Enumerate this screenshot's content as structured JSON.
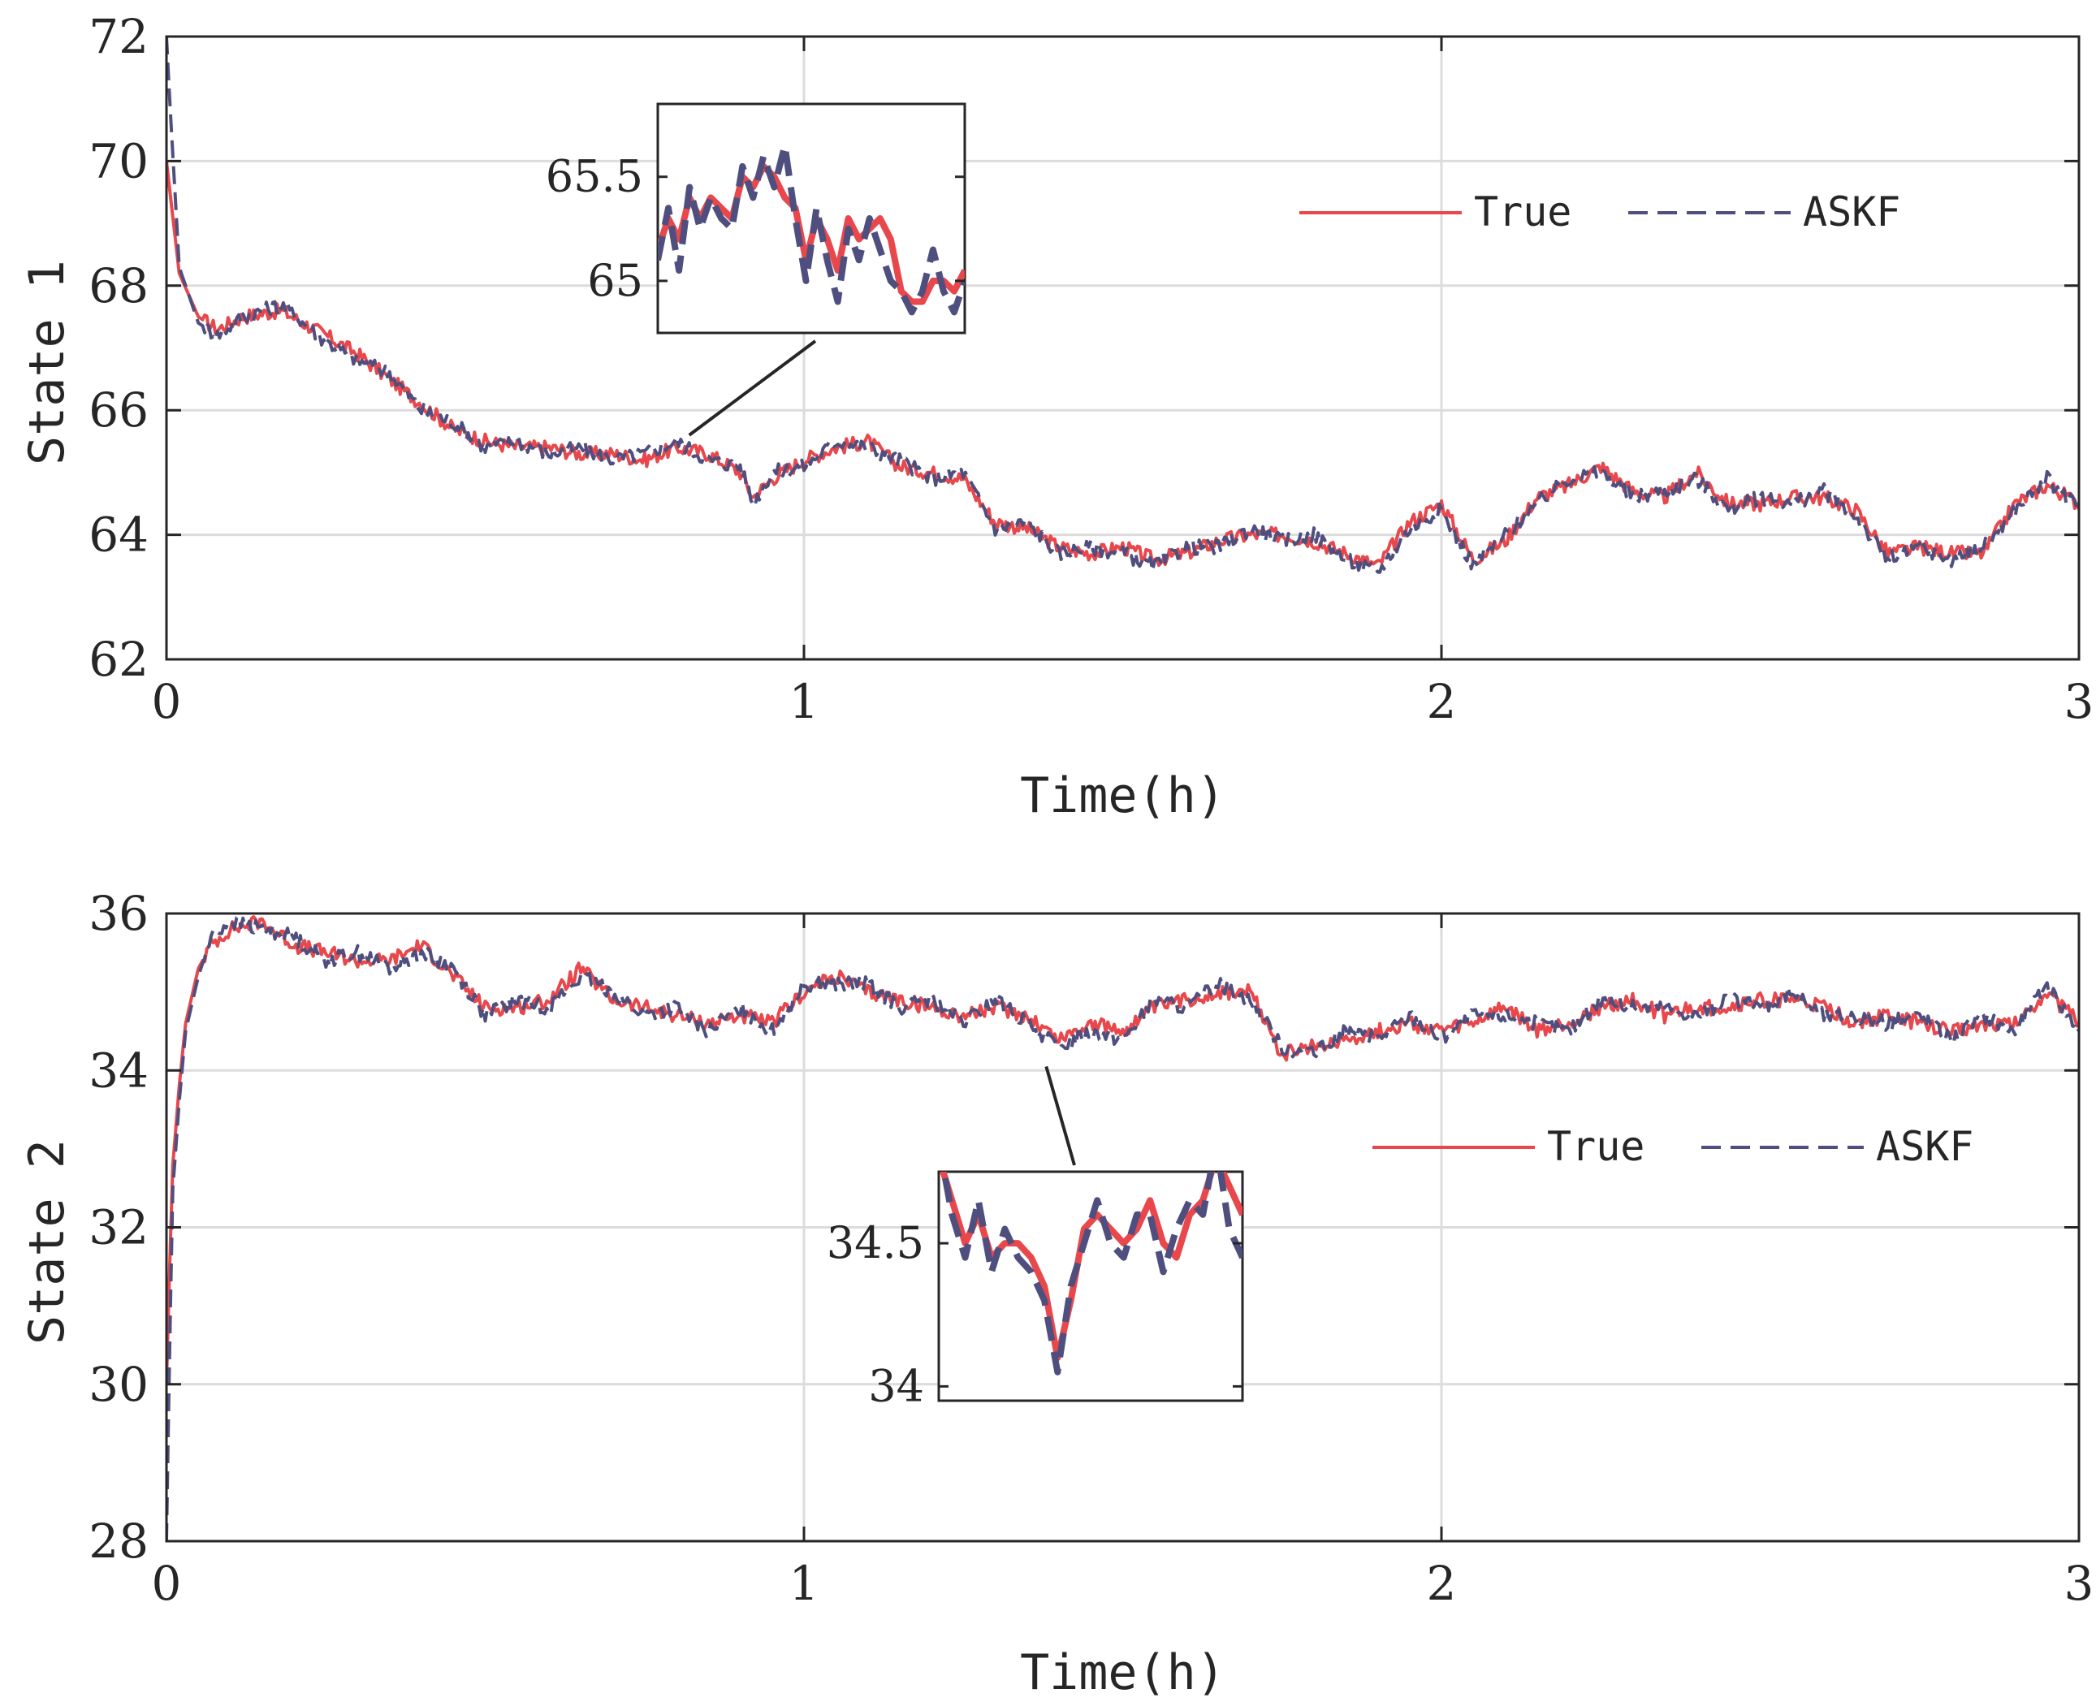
{
  "colors": {
    "true": "#e8474c",
    "askf": "#4f4f7f",
    "grid": "#dcdcdc",
    "axis": "#262626"
  },
  "chart_data": [
    {
      "type": "line",
      "xlabel": "Time(h)",
      "ylabel": "State 1",
      "xlim": [
        0,
        3
      ],
      "ylim": [
        62,
        72
      ],
      "xticks": [
        0,
        1,
        2,
        3
      ],
      "xtick_labels": [
        "0",
        "1",
        "2",
        "3"
      ],
      "yticks": [
        62,
        64,
        66,
        68,
        70,
        72
      ],
      "ytick_labels": [
        "62",
        "64",
        "66",
        "68",
        "70",
        "72"
      ],
      "grid": true,
      "legend": {
        "placement": "top-right",
        "entries": [
          "True",
          "ASKF"
        ]
      },
      "series": [
        {
          "name": "True",
          "style": "solid",
          "x": [
            0,
            0.02,
            0.05,
            0.08,
            0.12,
            0.18,
            0.25,
            0.3,
            0.35,
            0.4,
            0.45,
            0.5,
            0.55,
            0.6,
            0.65,
            0.7,
            0.75,
            0.8,
            0.85,
            0.9,
            0.92,
            0.95,
            1.0,
            1.05,
            1.1,
            1.15,
            1.2,
            1.25,
            1.3,
            1.35,
            1.4,
            1.45,
            1.5,
            1.55,
            1.6,
            1.65,
            1.7,
            1.75,
            1.8,
            1.85,
            1.9,
            1.95,
            2.0,
            2.05,
            2.1,
            2.15,
            2.2,
            2.25,
            2.3,
            2.35,
            2.4,
            2.45,
            2.5,
            2.55,
            2.6,
            2.65,
            2.7,
            2.75,
            2.8,
            2.85,
            2.9,
            2.95,
            3.0
          ],
          "y": [
            70,
            68.2,
            67.5,
            67.3,
            67.5,
            67.6,
            67.2,
            66.9,
            66.5,
            66.1,
            65.7,
            65.5,
            65.4,
            65.4,
            65.3,
            65.3,
            65.2,
            65.4,
            65.3,
            65.0,
            64.6,
            64.9,
            65.2,
            65.4,
            65.5,
            65.1,
            65.0,
            64.9,
            64.2,
            64.1,
            63.8,
            63.7,
            63.8,
            63.6,
            63.7,
            63.9,
            64.0,
            64.0,
            63.9,
            63.7,
            63.5,
            64.2,
            64.5,
            63.6,
            63.9,
            64.6,
            64.8,
            65.1,
            64.7,
            64.6,
            65.0,
            64.5,
            64.5,
            64.6,
            64.6,
            64.4,
            63.7,
            63.8,
            63.7,
            63.7,
            64.5,
            64.8,
            64.5
          ]
        },
        {
          "name": "ASKF",
          "style": "dashed",
          "x": [
            0,
            0.005,
            0.02,
            0.05,
            0.08,
            0.12,
            0.18,
            0.25,
            0.3,
            0.35,
            0.4,
            0.45,
            0.5,
            0.55,
            0.6,
            0.65,
            0.7,
            0.75,
            0.8,
            0.85,
            0.9,
            0.92,
            0.95,
            1.0,
            1.05,
            1.1,
            1.15,
            1.2,
            1.25,
            1.3,
            1.35,
            1.4,
            1.45,
            1.5,
            1.55,
            1.6,
            1.65,
            1.7,
            1.75,
            1.8,
            1.85,
            1.9,
            1.95,
            2.0,
            2.05,
            2.1,
            2.15,
            2.2,
            2.25,
            2.3,
            2.35,
            2.4,
            2.45,
            2.5,
            2.55,
            2.6,
            2.65,
            2.7,
            2.75,
            2.8,
            2.85,
            2.9,
            2.95,
            3.0
          ],
          "y": [
            72,
            71,
            68.3,
            67.4,
            67.2,
            67.5,
            67.7,
            67.1,
            66.8,
            66.6,
            66.0,
            65.8,
            65.4,
            65.5,
            65.3,
            65.4,
            65.2,
            65.3,
            65.5,
            65.2,
            65.1,
            64.5,
            65.0,
            65.1,
            65.5,
            65.4,
            65.2,
            64.9,
            65.0,
            64.1,
            64.2,
            63.7,
            63.8,
            63.7,
            63.5,
            63.8,
            63.8,
            64.1,
            63.9,
            64.0,
            63.6,
            63.4,
            64.1,
            64.4,
            63.5,
            64.0,
            64.5,
            64.9,
            65.0,
            64.6,
            64.7,
            64.9,
            64.4,
            64.6,
            64.5,
            64.7,
            64.3,
            63.6,
            63.8,
            63.6,
            63.8,
            64.4,
            64.9,
            64.4
          ]
        }
      ],
      "inset": {
        "source_x": 0.82,
        "source_y": 65.6,
        "xlim": [
          0.77,
          0.87
        ],
        "ylim": [
          64.75,
          65.85
        ],
        "yticks": [
          65,
          65.5
        ],
        "ytick_labels": [
          "65",
          "65.5"
        ],
        "true_y": [
          65.15,
          65.3,
          65.2,
          65.4,
          65.3,
          65.4,
          65.35,
          65.3,
          65.5,
          65.45,
          65.55,
          65.5,
          65.4,
          65.35,
          65.1,
          65.3,
          65.2,
          65.05,
          65.3,
          65.2,
          65.25,
          65.3,
          65.2,
          64.95,
          64.9,
          64.9,
          65.0,
          65.0,
          64.95,
          65.05
        ],
        "askf_y": [
          65.1,
          65.35,
          65.05,
          65.45,
          65.25,
          65.4,
          65.3,
          65.25,
          65.55,
          65.4,
          65.6,
          65.45,
          65.65,
          65.3,
          65.0,
          65.35,
          65.1,
          64.9,
          65.25,
          65.1,
          65.3,
          65.15,
          65.0,
          64.95,
          64.85,
          64.95,
          65.15,
          64.95,
          64.85,
          65.0
        ]
      }
    },
    {
      "type": "line",
      "xlabel": "Time(h)",
      "ylabel": "State 2",
      "xlim": [
        0,
        3
      ],
      "ylim": [
        28,
        36
      ],
      "xticks": [
        0,
        1,
        2,
        3
      ],
      "xtick_labels": [
        "0",
        "1",
        "2",
        "3"
      ],
      "yticks": [
        28,
        30,
        32,
        34,
        36
      ],
      "ytick_labels": [
        "28",
        "30",
        "32",
        "34",
        "36"
      ],
      "grid": true,
      "legend": {
        "placement": "center-right",
        "entries": [
          "True",
          "ASKF"
        ]
      },
      "series": [
        {
          "name": "True",
          "style": "solid",
          "x": [
            0,
            0.005,
            0.01,
            0.02,
            0.03,
            0.05,
            0.07,
            0.1,
            0.15,
            0.2,
            0.25,
            0.3,
            0.35,
            0.4,
            0.45,
            0.5,
            0.55,
            0.6,
            0.65,
            0.7,
            0.75,
            0.8,
            0.85,
            0.9,
            0.95,
            1.0,
            1.05,
            1.1,
            1.15,
            1.2,
            1.25,
            1.3,
            1.35,
            1.4,
            1.45,
            1.5,
            1.55,
            1.6,
            1.65,
            1.7,
            1.75,
            1.8,
            1.85,
            1.9,
            1.95,
            2.0,
            2.05,
            2.1,
            2.15,
            2.2,
            2.25,
            2.3,
            2.35,
            2.4,
            2.45,
            2.5,
            2.55,
            2.6,
            2.65,
            2.7,
            2.75,
            2.8,
            2.85,
            2.9,
            2.95,
            3.0
          ],
          "y": [
            30,
            31.5,
            32.8,
            33.8,
            34.6,
            35.3,
            35.6,
            35.8,
            35.9,
            35.6,
            35.5,
            35.4,
            35.4,
            35.6,
            35.2,
            34.8,
            34.8,
            34.9,
            35.3,
            34.9,
            34.8,
            34.7,
            34.6,
            34.7,
            34.6,
            35.0,
            35.2,
            35.0,
            34.9,
            34.8,
            34.7,
            34.8,
            34.7,
            34.4,
            34.6,
            34.5,
            34.8,
            34.9,
            35.0,
            35.0,
            34.2,
            34.3,
            34.4,
            34.5,
            34.6,
            34.5,
            34.6,
            34.8,
            34.5,
            34.6,
            34.8,
            34.9,
            34.7,
            34.8,
            34.8,
            34.9,
            34.9,
            34.8,
            34.6,
            34.7,
            34.6,
            34.5,
            34.6,
            34.6,
            35.0,
            34.6
          ]
        },
        {
          "name": "ASKF",
          "style": "dashed",
          "x": [
            0,
            0.005,
            0.01,
            0.02,
            0.03,
            0.05,
            0.07,
            0.1,
            0.15,
            0.2,
            0.25,
            0.3,
            0.35,
            0.4,
            0.45,
            0.5,
            0.55,
            0.6,
            0.65,
            0.7,
            0.75,
            0.8,
            0.85,
            0.9,
            0.95,
            1.0,
            1.05,
            1.1,
            1.15,
            1.2,
            1.25,
            1.3,
            1.35,
            1.4,
            1.45,
            1.5,
            1.55,
            1.6,
            1.65,
            1.7,
            1.75,
            1.8,
            1.85,
            1.9,
            1.95,
            2.0,
            2.05,
            2.1,
            2.15,
            2.2,
            2.25,
            2.3,
            2.35,
            2.4,
            2.45,
            2.5,
            2.55,
            2.6,
            2.65,
            2.7,
            2.75,
            2.8,
            2.85,
            2.9,
            2.95,
            3.0
          ],
          "y": [
            28,
            30.5,
            32.5,
            33.6,
            34.5,
            35.2,
            35.7,
            35.9,
            35.8,
            35.7,
            35.4,
            35.5,
            35.3,
            35.5,
            35.3,
            34.7,
            34.9,
            34.8,
            35.2,
            35.0,
            34.7,
            34.8,
            34.5,
            34.8,
            34.5,
            35.1,
            35.1,
            35.1,
            34.8,
            34.9,
            34.6,
            34.9,
            34.6,
            34.3,
            34.5,
            34.4,
            34.9,
            34.8,
            35.1,
            34.9,
            34.3,
            34.2,
            34.5,
            34.4,
            34.7,
            34.4,
            34.7,
            34.7,
            34.6,
            34.5,
            34.9,
            34.8,
            34.8,
            34.7,
            34.9,
            34.8,
            35.0,
            34.7,
            34.7,
            34.6,
            34.7,
            34.4,
            34.7,
            34.5,
            35.1,
            34.5
          ]
        }
      ],
      "inset": {
        "source_x": 1.38,
        "source_y": 34.05,
        "xlim": [
          1.36,
          1.48
        ],
        "ylim": [
          33.95,
          34.75
        ],
        "yticks": [
          34,
          34.5
        ],
        "ytick_labels": [
          "34",
          "34.5"
        ],
        "true_y": [
          34.8,
          34.65,
          34.5,
          34.6,
          34.45,
          34.5,
          34.5,
          34.45,
          34.35,
          34.1,
          34.3,
          34.55,
          34.6,
          34.55,
          34.5,
          34.55,
          34.65,
          34.5,
          34.45,
          34.6,
          34.65,
          34.8,
          34.7,
          34.6
        ],
        "askf_y": [
          34.85,
          34.6,
          34.45,
          34.65,
          34.4,
          34.55,
          34.45,
          34.4,
          34.3,
          34.05,
          34.35,
          34.5,
          34.65,
          34.5,
          34.45,
          34.6,
          34.6,
          34.4,
          34.55,
          34.65,
          34.6,
          34.85,
          34.55,
          34.45
        ]
      }
    }
  ]
}
